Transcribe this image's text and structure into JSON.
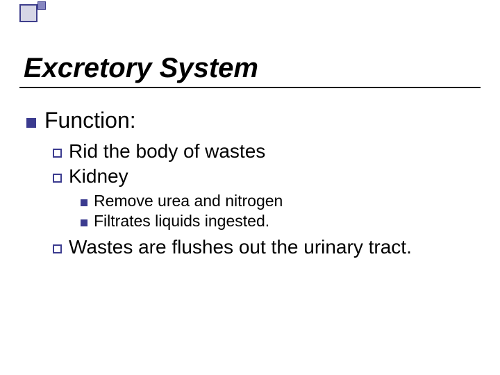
{
  "colors": {
    "bullet_fill": "#3b3b8f",
    "bullet_border": "#3b3b8f",
    "accent_big_fill": "#d6d6e6",
    "accent_small_fill": "#8686c0",
    "rule": "#000000",
    "text": "#000000",
    "background": "#ffffff"
  },
  "typography": {
    "title_fontsize_pt": 30,
    "title_style": "bold italic",
    "l1_fontsize_pt": 24,
    "l2_fontsize_pt": 21,
    "l3_fontsize_pt": 17,
    "font_family": "Arial"
  },
  "slide": {
    "title": "Excretory System",
    "l1": {
      "text": "Function:",
      "children": [
        {
          "text": "Rid the body of wastes"
        },
        {
          "text": "Kidney",
          "children": [
            {
              "text": "Remove urea and nitrogen"
            },
            {
              "text": "Filtrates liquids ingested."
            }
          ]
        },
        {
          "text": "Wastes are flushes out the urinary tract."
        }
      ]
    }
  }
}
